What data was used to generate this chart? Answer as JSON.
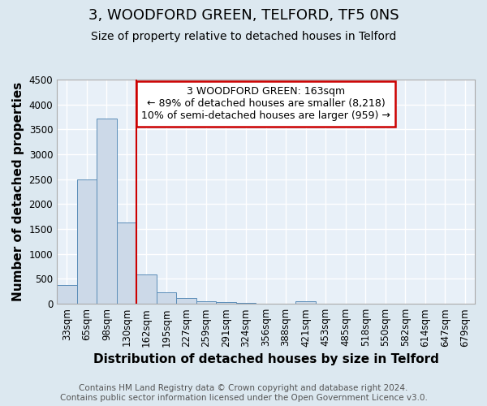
{
  "title": "3, WOODFORD GREEN, TELFORD, TF5 0NS",
  "subtitle": "Size of property relative to detached houses in Telford",
  "xlabel": "Distribution of detached houses by size in Telford",
  "ylabel": "Number of detached properties",
  "bin_labels": [
    "33sqm",
    "65sqm",
    "98sqm",
    "130sqm",
    "162sqm",
    "195sqm",
    "227sqm",
    "259sqm",
    "291sqm",
    "324sqm",
    "356sqm",
    "388sqm",
    "421sqm",
    "453sqm",
    "485sqm",
    "518sqm",
    "550sqm",
    "582sqm",
    "614sqm",
    "647sqm",
    "679sqm"
  ],
  "bar_heights": [
    370,
    2500,
    3720,
    1640,
    590,
    230,
    110,
    55,
    40,
    25,
    5,
    0,
    45,
    0,
    0,
    0,
    0,
    0,
    0,
    0,
    0
  ],
  "bar_color": "#ccd9e8",
  "bar_edge_color": "#5b8db8",
  "annotation_line1": "3 WOODFORD GREEN: 163sqm",
  "annotation_line2": "← 89% of detached houses are smaller (8,218)",
  "annotation_line3": "10% of semi-detached houses are larger (959) →",
  "annotation_box_color": "#ffffff",
  "annotation_box_edge": "#cc0000",
  "vline_color": "#cc0000",
  "vline_x": 3.5,
  "ylim": [
    0,
    4500
  ],
  "yticks": [
    0,
    500,
    1000,
    1500,
    2000,
    2500,
    3000,
    3500,
    4000,
    4500
  ],
  "footer1": "Contains HM Land Registry data © Crown copyright and database right 2024.",
  "footer2": "Contains public sector information licensed under the Open Government Licence v3.0.",
  "background_color": "#dce8f0",
  "plot_bg_color": "#e8f0f8",
  "grid_color": "#ffffff",
  "title_fontsize": 13,
  "subtitle_fontsize": 10,
  "axis_label_fontsize": 11,
  "tick_fontsize": 8.5,
  "annotation_fontsize": 9,
  "footer_fontsize": 7.5
}
